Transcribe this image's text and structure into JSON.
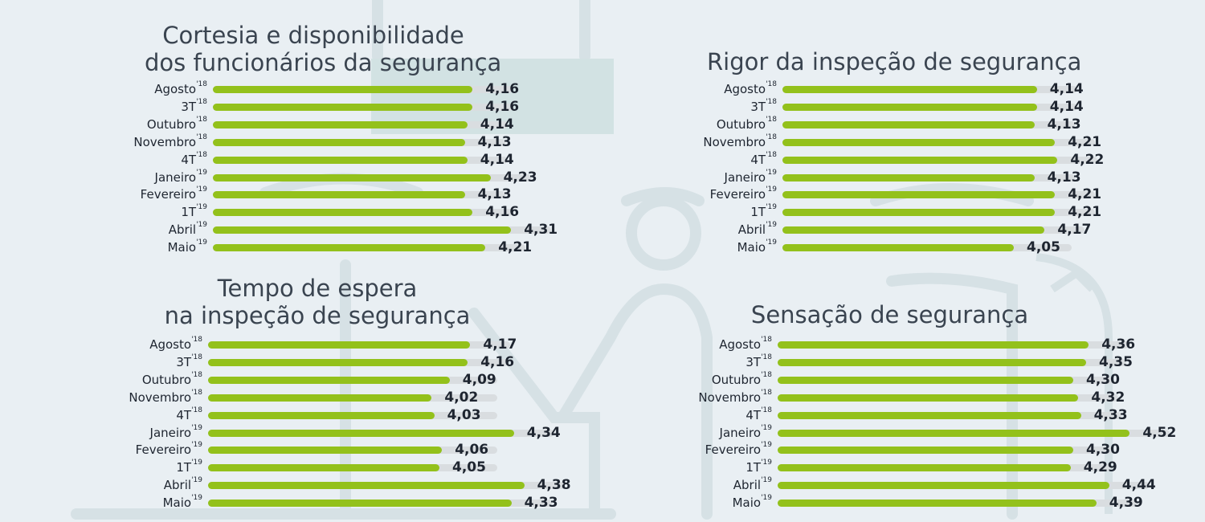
{
  "colors": {
    "background": "#e9eff3",
    "bar": "#93c11b",
    "track": "#d9dde0",
    "text": "#1e2530"
  },
  "period_labels": [
    {
      "name": "Agosto",
      "sup": "'18"
    },
    {
      "name": "3T",
      "sup": "'18"
    },
    {
      "name": "Outubro",
      "sup": "'18"
    },
    {
      "name": "Novembro",
      "sup": "'18"
    },
    {
      "name": "4T",
      "sup": "'18"
    },
    {
      "name": "Janeiro",
      "sup": "'19"
    },
    {
      "name": "Fevereiro",
      "sup": "'19"
    },
    {
      "name": "1T",
      "sup": "'19"
    },
    {
      "name": "Abril",
      "sup": "'19"
    },
    {
      "name": "Maio",
      "sup": "'19"
    }
  ],
  "chart_data": [
    {
      "type": "bar",
      "orientation": "horizontal",
      "title": [
        "Cortesia e disponibilidade",
        "dos funcionários da segurança"
      ],
      "categories": [
        "Agosto'18",
        "3T'18",
        "Outubro'18",
        "Novembro'18",
        "4T'18",
        "Janeiro'19",
        "Fevereiro'19",
        "1T'19",
        "Abril'19",
        "Maio'19"
      ],
      "values": [
        4.16,
        4.16,
        4.14,
        4.13,
        4.14,
        4.23,
        4.13,
        4.16,
        4.31,
        4.21
      ],
      "value_labels": [
        "4,16",
        "4,16",
        "4,14",
        "4,13",
        "4,14",
        "4,23",
        "4,13",
        "4,16",
        "4,31",
        "4,21"
      ],
      "xlim": [
        0,
        5
      ]
    },
    {
      "type": "bar",
      "orientation": "horizontal",
      "title": [
        "Rigor da inspeção de segurança"
      ],
      "categories": [
        "Agosto'18",
        "3T'18",
        "Outubro'18",
        "Novembro'18",
        "4T'18",
        "Janeiro'19",
        "Fevereiro'19",
        "1T'19",
        "Abril'19",
        "Maio'19"
      ],
      "values": [
        4.14,
        4.14,
        4.13,
        4.21,
        4.22,
        4.13,
        4.21,
        4.21,
        4.17,
        4.05
      ],
      "value_labels": [
        "4,14",
        "4,14",
        "4,13",
        "4,21",
        "4,22",
        "4,13",
        "4,21",
        "4,21",
        "4,17",
        "4,05"
      ],
      "xlim": [
        0,
        5
      ]
    },
    {
      "type": "bar",
      "orientation": "horizontal",
      "title": [
        "Tempo de espera",
        "na inspeção de segurança"
      ],
      "categories": [
        "Agosto'18",
        "3T'18",
        "Outubro'18",
        "Novembro'18",
        "4T'18",
        "Janeiro'19",
        "Fevereiro'19",
        "1T'19",
        "Abril'19",
        "Maio'19"
      ],
      "values": [
        4.17,
        4.16,
        4.09,
        4.02,
        4.03,
        4.34,
        4.06,
        4.05,
        4.38,
        4.33
      ],
      "value_labels": [
        "4,17",
        "4,16",
        "4,09",
        "4,02",
        "4,03",
        "4,34",
        "4,06",
        "4,05",
        "4,38",
        "4,33"
      ],
      "xlim": [
        0,
        5
      ]
    },
    {
      "type": "bar",
      "orientation": "horizontal",
      "title": [
        "Sensação de segurança"
      ],
      "categories": [
        "Agosto'18",
        "3T'18",
        "Outubro'18",
        "Novembro'18",
        "4T'18",
        "Janeiro'19",
        "Fevereiro'19",
        "1T'19",
        "Abril'19",
        "Maio'19"
      ],
      "values": [
        4.36,
        4.35,
        4.3,
        4.32,
        4.33,
        4.52,
        4.3,
        4.29,
        4.44,
        4.39
      ],
      "value_labels": [
        "4,36",
        "4,35",
        "4,30",
        "4,32",
        "4,33",
        "4,52",
        "4,30",
        "4,29",
        "4,44",
        "4,39"
      ],
      "xlim": [
        0,
        5
      ]
    }
  ]
}
